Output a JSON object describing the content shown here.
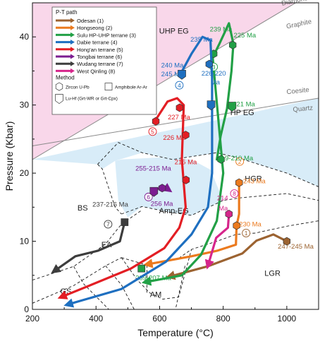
{
  "chart_data": {
    "type": "line",
    "title": "",
    "xlabel": "Temperature (°C)",
    "ylabel": "Pressure (Kbar)",
    "xlim": [
      200,
      1100
    ],
    "ylim": [
      0,
      45
    ],
    "x_ticks": [
      200,
      400,
      600,
      800,
      1000
    ],
    "y_ticks": [
      0,
      10,
      20,
      30,
      40
    ],
    "legend": {
      "title": "P-T path",
      "position": "top-left",
      "method_title": "Method",
      "methods": [
        {
          "symbol": "hexagon",
          "label": "Zircon U-Pb"
        },
        {
          "symbol": "square",
          "label": "Amphibole Ar-Ar"
        },
        {
          "symbol": "pentagon",
          "label": "Lu-Hf (Grt-WR or Grt-Cpx)"
        }
      ]
    },
    "field_lines": [
      {
        "name": "Diamond-Graphite",
        "labels": [
          "Diamond",
          "Graphite"
        ],
        "points": [
          [
            200,
            22
          ],
          [
            1100,
            47
          ]
        ]
      },
      {
        "name": "Coesite-Quartz",
        "labels": [
          "Coesite",
          "Quartz"
        ],
        "points": [
          [
            200,
            24
          ],
          [
            1100,
            31
          ]
        ]
      }
    ],
    "facies": [
      {
        "label": "UHP EG",
        "x": 645,
        "y": 40.5
      },
      {
        "label": "HP EG",
        "x": 860,
        "y": 28.5
      },
      {
        "label": "HGR",
        "x": 895,
        "y": 18.8
      },
      {
        "label": "BS",
        "x": 358,
        "y": 14.5
      },
      {
        "label": "Amp-EG",
        "x": 645,
        "y": 14.1
      },
      {
        "label": "EA",
        "x": 433,
        "y": 9.1
      },
      {
        "label": "LGR",
        "x": 955,
        "y": 4.9
      },
      {
        "label": "GS",
        "x": 305,
        "y": 2.3
      },
      {
        "label": "AM",
        "x": 588,
        "y": 1.8
      }
    ],
    "series": [
      {
        "name": "Odesan (1)",
        "color": "#9C6331",
        "number": "1",
        "points": [
          [
            1000,
            10
          ],
          [
            958,
            11
          ],
          [
            905,
            10.1
          ],
          [
            860,
            8.2
          ],
          [
            750,
            6.3
          ],
          [
            630,
            4.8
          ]
        ],
        "start_label": [
          872,
          11.2
        ],
        "markers": [
          {
            "x": 1000,
            "y": 10,
            "symbol": "hexagon"
          }
        ],
        "ages": [
          {
            "text": "247-245 Ma",
            "x": 1028,
            "y": 8.9
          }
        ]
      },
      {
        "name": "Hongseong (2)",
        "color": "#EB7A1E",
        "number": "2",
        "points": [
          [
            850,
            18.6
          ],
          [
            850,
            14
          ],
          [
            842,
            12.2
          ],
          [
            840,
            9.5
          ],
          [
            780,
            8.6
          ],
          [
            700,
            7.8
          ],
          [
            560,
            6.6
          ]
        ],
        "start_label": [
          852,
          21.7
        ],
        "markers": [
          {
            "x": 850,
            "y": 18.6,
            "symbol": "hexagon"
          },
          {
            "x": 842,
            "y": 12.3,
            "symbol": "hexagon"
          }
        ],
        "ages": [
          {
            "text": "243 Ma",
            "x": 898,
            "y": 18.5
          },
          {
            "text": "230 Ma",
            "x": 885,
            "y": 12.2
          }
        ]
      },
      {
        "name": "Sulu HP-UHP terrane (3)",
        "color": "#22A046",
        "number": "3",
        "points": [
          [
            780,
            22
          ],
          [
            792,
            25.5
          ],
          [
            812,
            29.5
          ],
          [
            826,
            35
          ],
          [
            832,
            39
          ],
          [
            818,
            42
          ],
          [
            788,
            39
          ],
          [
            762,
            36.5
          ],
          [
            766,
            37.5
          ],
          [
            800,
            20
          ],
          [
            780,
            13
          ],
          [
            730,
            8
          ],
          [
            670,
            5
          ],
          [
            555,
            4
          ]
        ],
        "start_label": [
          770,
          35.6
        ],
        "markers": [
          {
            "x": 770,
            "y": 37.5,
            "symbol": "hexagon"
          },
          {
            "x": 830,
            "y": 38.8,
            "symbol": "hexagon"
          },
          {
            "x": 828,
            "y": 29.8,
            "symbol": "pentagon"
          },
          {
            "x": 793,
            "y": 22,
            "symbol": "hexagon"
          },
          {
            "x": 543,
            "y": 6,
            "symbol": "square"
          }
        ],
        "ages": [
          {
            "text": "239 Ma",
            "x": 793,
            "y": 40.8
          },
          {
            "text": "225 Ma",
            "x": 868,
            "y": 39.9
          },
          {
            "text": "221 Ma",
            "x": 865,
            "y": 29.8
          },
          {
            "text": "219-210 Ma",
            "x": 838,
            "y": 21.9
          },
          {
            "text": "209-207 Ma",
            "x": 580,
            "y": 4.3
          }
        ]
      },
      {
        "name": "Dabie terrane (4)",
        "color": "#1E6FC0",
        "number": "4",
        "points": [
          [
            665,
            34.5
          ],
          [
            700,
            37.5
          ],
          [
            735,
            40
          ],
          [
            760,
            39.5
          ],
          [
            765,
            34
          ],
          [
            765,
            20
          ],
          [
            752,
            15
          ],
          [
            700,
            11
          ],
          [
            620,
            7
          ],
          [
            480,
            3
          ],
          [
            310,
            0.7
          ]
        ],
        "start_label": [
          662,
          32.9
        ],
        "markers": [
          {
            "x": 670,
            "y": 34.5,
            "symbol": "pentagon"
          },
          {
            "x": 756,
            "y": 36,
            "symbol": "hexagon"
          },
          {
            "x": 762,
            "y": 30,
            "symbol": "pentagon"
          }
        ],
        "ages": [
          {
            "text": "235 Ma",
            "x": 732,
            "y": 39.3
          },
          {
            "text": "240 Ma",
            "x": 640,
            "y": 35.5
          },
          {
            "text": "245 Ma",
            "x": 640,
            "y": 34.2
          },
          {
            "text": "226-220",
            "x": 770,
            "y": 34.3
          },
          {
            "text": "Ma",
            "x": 775,
            "y": 33
          }
        ]
      },
      {
        "name": "Hong'an terrane (5)",
        "color": "#E31E24",
        "number": "5",
        "points": [
          [
            590,
            28
          ],
          [
            625,
            30.5
          ],
          [
            655,
            31
          ],
          [
            676,
            30
          ],
          [
            670,
            22
          ],
          [
            682,
            15
          ],
          [
            662,
            12
          ],
          [
            615,
            9
          ],
          [
            510,
            6
          ],
          [
            380,
            3.5
          ],
          [
            290,
            1.8
          ]
        ],
        "start_label": [
          578,
          26.1
        ],
        "markers": [
          {
            "x": 588,
            "y": 27.6,
            "symbol": "hexagon"
          },
          {
            "x": 663,
            "y": 29.6,
            "symbol": "hexagon"
          },
          {
            "x": 682,
            "y": 25.6,
            "symbol": "hexagon"
          },
          {
            "x": 683,
            "y": 19,
            "symbol": "hexagon"
          }
        ],
        "ages": [
          {
            "text": "239 Ma",
            "x": 548,
            "y": 29.9
          },
          {
            "text": "227 Ma",
            "x": 661,
            "y": 27.9
          },
          {
            "text": "226 Ma",
            "x": 646,
            "y": 24.9
          },
          {
            "text": "215 Ma",
            "x": 682,
            "y": 21.3
          }
        ]
      },
      {
        "name": "Tongbai terrane (6)",
        "color": "#7C1D91",
        "number": "6",
        "points": [
          [
            570,
            16.5
          ],
          [
            585,
            17.6
          ],
          [
            615,
            18
          ],
          [
            630,
            17.5
          ]
        ],
        "start_label": [
          565,
          16.5
        ],
        "markers": [
          {
            "x": 608,
            "y": 17.8,
            "symbol": "hexagon"
          },
          {
            "x": 582,
            "y": 17.3,
            "symbol": "pentagon"
          }
        ],
        "ages": [
          {
            "text": "255-215 Ma",
            "x": 580,
            "y": 20.4
          },
          {
            "text": "256 Ma",
            "x": 607,
            "y": 15.2
          }
        ]
      },
      {
        "name": "Wudang terrane (7)",
        "color": "#3D3D3D",
        "number": "7",
        "points": [
          [
            490,
            12.8
          ],
          [
            475,
            10
          ],
          [
            405,
            8.6
          ],
          [
            335,
            7.8
          ],
          [
            268,
            5.6
          ]
        ],
        "start_label": [
          438,
          12.5
        ],
        "markers": [
          {
            "x": 490,
            "y": 12.8,
            "symbol": "square"
          }
        ],
        "ages": [
          {
            "text": "237-216 Ma",
            "x": 445,
            "y": 15.1
          }
        ]
      },
      {
        "name": "West Qinling (8)",
        "color": "#D6258B",
        "number": "8",
        "points": [
          [
            818,
            14
          ],
          [
            815,
            12
          ],
          [
            778,
            10.5
          ],
          [
            752,
            6.4
          ]
        ],
        "start_label": [
          835,
          17
        ],
        "markers": [
          {
            "x": 818,
            "y": 14,
            "symbol": "hexagon"
          }
        ],
        "ages": [
          {
            "text": "214",
            "x": 798,
            "y": 16
          },
          {
            "text": "Ma",
            "x": 800,
            "y": 14.5
          }
        ]
      }
    ]
  }
}
